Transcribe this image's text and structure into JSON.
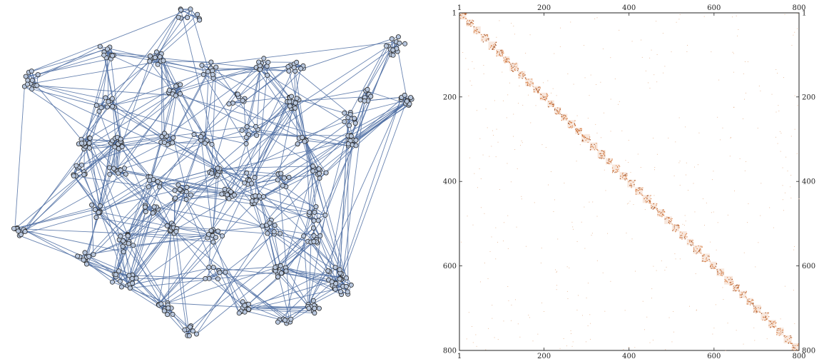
{
  "chart_data": [
    {
      "type": "network",
      "node_count": 800,
      "cluster_count": 45,
      "directed": true,
      "colors": {
        "node_fill": "#b7c6dd",
        "node_stroke": "#2b2b2b",
        "edge": "#4f6fa3"
      }
    },
    {
      "type": "heatmap",
      "matrix_size": 800,
      "xlim": [
        1,
        800
      ],
      "ylim": [
        1,
        800
      ],
      "top_tick_labels": [
        "1",
        "200",
        "400",
        "600",
        "800"
      ],
      "bottom_tick_labels": [
        "1",
        "200",
        "400",
        "600",
        "800"
      ],
      "left_tick_labels": [
        "1",
        "200",
        "400",
        "600",
        "800"
      ],
      "right_tick_labels": [
        "1",
        "200",
        "400",
        "600",
        "800"
      ],
      "tick_values": [
        1,
        200,
        400,
        600,
        800
      ],
      "block_size": 18,
      "colors": {
        "diagonal": "#d9824a",
        "diagonal_dark": "#9c4a1c",
        "sparse": "#e6b28c",
        "frame": "#222222"
      }
    }
  ]
}
